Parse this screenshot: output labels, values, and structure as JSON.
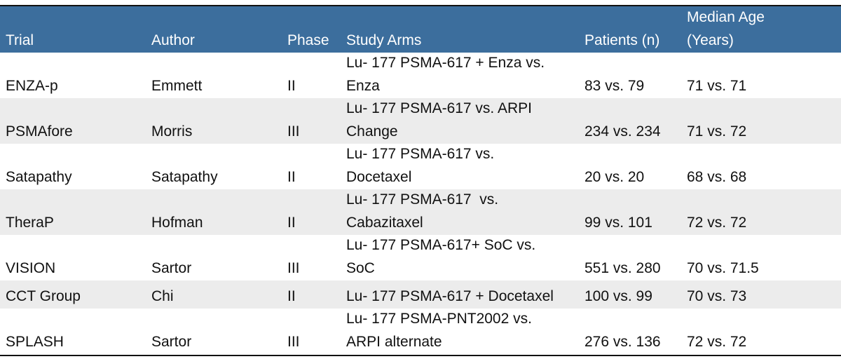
{
  "table": {
    "header": [
      "Trial",
      "Author",
      "Phase",
      "Study Arms",
      "Patients (n)",
      [
        "Median Age",
        "(Years)"
      ]
    ],
    "rows": [
      [
        "ENZA-p",
        "Emmett",
        "II",
        [
          "Lu- 177 PSMA-617 + Enza vs.",
          "Enza"
        ],
        "83 vs. 79",
        "71 vs. 71"
      ],
      [
        "PSMAfore",
        "Morris",
        "III",
        [
          "Lu- 177 PSMA-617 vs. ARPI",
          "Change"
        ],
        "234 vs. 234",
        "71 vs. 72"
      ],
      [
        "Satapathy",
        "Satapathy",
        "II",
        [
          "Lu- 177 PSMA-617 vs.",
          "Docetaxel"
        ],
        "20 vs. 20",
        "68 vs. 68"
      ],
      [
        "TheraP",
        "Hofman",
        "II",
        [
          "Lu- 177 PSMA-617  vs.",
          "Cabazitaxel"
        ],
        "99 vs. 101",
        "72 vs. 72"
      ],
      [
        "VISION",
        "Sartor",
        "III",
        [
          "Lu- 177 PSMA-617+ SoC vs.",
          "SoC"
        ],
        "551 vs. 280",
        "70 vs. 71.5"
      ],
      [
        "CCT Group",
        "Chi",
        "II",
        "Lu- 177 PSMA-617 + Docetaxel",
        "100 vs. 99",
        "70 vs. 73"
      ],
      [
        "SPLASH",
        "Sartor",
        "III",
        [
          "Lu- 177 PSMA-PNT2002 vs.",
          "ARPI alternate"
        ],
        "276 vs. 136",
        "72 vs. 72"
      ]
    ]
  }
}
